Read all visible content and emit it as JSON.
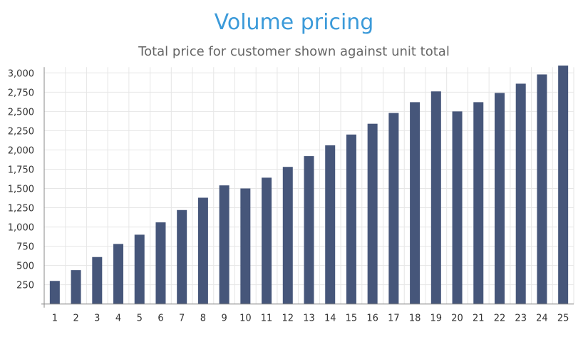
{
  "chart_data": {
    "type": "bar",
    "title": "Volume pricing",
    "subtitle": "Total price for customer shown against unit total",
    "xlabel": "",
    "ylabel": "",
    "categories": [
      "1",
      "2",
      "3",
      "4",
      "5",
      "6",
      "7",
      "8",
      "9",
      "10",
      "11",
      "12",
      "13",
      "14",
      "15",
      "16",
      "17",
      "18",
      "19",
      "20",
      "21",
      "22",
      "23",
      "24",
      "25"
    ],
    "values": [
      300,
      440,
      610,
      780,
      900,
      1060,
      1220,
      1380,
      1540,
      1500,
      1640,
      1780,
      1920,
      2060,
      2200,
      2340,
      2480,
      2620,
      2760,
      2500,
      2620,
      2740,
      2860,
      2980,
      3100
    ],
    "ylim": [
      0,
      3000
    ],
    "yticks": [
      "250",
      "500",
      "750",
      "1,000",
      "1,250",
      "1,500",
      "1,750",
      "2,000",
      "2,250",
      "2,500",
      "2,750",
      "3,000"
    ],
    "ytick_values": [
      250,
      500,
      750,
      1000,
      1250,
      1500,
      1750,
      2000,
      2250,
      2500,
      2750,
      3000
    ],
    "grid": true,
    "colors": {
      "bar": "#46567a",
      "title": "#3b9ad9",
      "grid": "#e6e6e6",
      "axis": "#888888"
    }
  }
}
